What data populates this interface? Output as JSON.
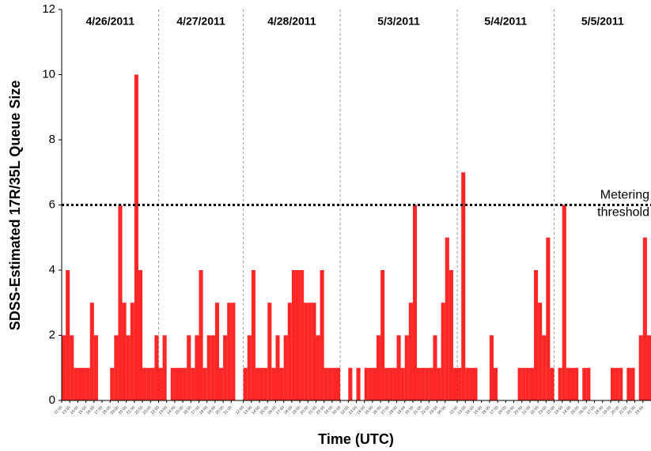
{
  "chart_data": {
    "type": "step",
    "y_label": "SDSS-Estimated 17R/35L Queue Size",
    "x_label": "Time (UTC)",
    "xlim": [
      0,
      73
    ],
    "ylim": [
      0,
      12
    ],
    "yticks": [
      0,
      2,
      4,
      6,
      8,
      10,
      12
    ],
    "grid": false,
    "color": "#ff0000",
    "days": [
      {
        "label": "4/26/2011",
        "start": 0,
        "end": 12
      },
      {
        "label": "4/27/2011",
        "start": 12,
        "end": 22.5
      },
      {
        "label": "4/28/2011",
        "start": 22.5,
        "end": 34.5
      },
      {
        "label": "5/3/2011",
        "start": 34.5,
        "end": 49
      },
      {
        "label": "5/4/2011",
        "start": 49,
        "end": 61
      },
      {
        "label": "5/5/2011",
        "start": 61,
        "end": 73
      }
    ],
    "threshold": {
      "value": 6,
      "label": [
        "Metering",
        "threshold"
      ]
    },
    "xticks": [
      {
        "value": 0,
        "label": "12:00"
      },
      {
        "value": 1,
        "label": "13:00"
      },
      {
        "value": 2,
        "label": "14:00"
      },
      {
        "value": 3,
        "label": "15:00"
      },
      {
        "value": 4,
        "label": "16:00"
      },
      {
        "value": 5,
        "label": "17:00"
      },
      {
        "value": 6,
        "label": "18:00"
      },
      {
        "value": 7,
        "label": "19:00"
      },
      {
        "value": 8,
        "label": "20:00"
      },
      {
        "value": 9,
        "label": "21:00"
      },
      {
        "value": 10,
        "label": "22:00"
      },
      {
        "value": 11,
        "label": "23:00"
      },
      {
        "value": 12,
        "label": "12:00"
      },
      {
        "value": 13,
        "label": "13:00"
      },
      {
        "value": 14,
        "label": "14:00"
      },
      {
        "value": 15,
        "label": "15:00"
      },
      {
        "value": 16,
        "label": "16:00"
      },
      {
        "value": 17,
        "label": "17:00"
      },
      {
        "value": 18,
        "label": "18:00"
      },
      {
        "value": 19,
        "label": "19:00"
      },
      {
        "value": 20,
        "label": "20:00"
      },
      {
        "value": 21,
        "label": "21:00"
      },
      {
        "value": 22.5,
        "label": "12:00"
      },
      {
        "value": 23.5,
        "label": "13:00"
      },
      {
        "value": 24.5,
        "label": "14:00"
      },
      {
        "value": 25.5,
        "label": "15:00"
      },
      {
        "value": 26.5,
        "label": "16:00"
      },
      {
        "value": 27.5,
        "label": "17:00"
      },
      {
        "value": 28.5,
        "label": "18:00"
      },
      {
        "value": 29.5,
        "label": "19:00"
      },
      {
        "value": 30.5,
        "label": "20:00"
      },
      {
        "value": 31.5,
        "label": "21:00"
      },
      {
        "value": 32.5,
        "label": "22:00"
      },
      {
        "value": 33.5,
        "label": "23:00"
      },
      {
        "value": 34.5,
        "label": "00:00"
      },
      {
        "value": 35.5,
        "label": "12:00"
      },
      {
        "value": 36.5,
        "label": "13:00"
      },
      {
        "value": 37.5,
        "label": "14:00"
      },
      {
        "value": 38.5,
        "label": "15:00"
      },
      {
        "value": 39.5,
        "label": "16:00"
      },
      {
        "value": 40.5,
        "label": "17:00"
      },
      {
        "value": 41.5,
        "label": "18:00"
      },
      {
        "value": 42.5,
        "label": "19:00"
      },
      {
        "value": 43.5,
        "label": "20:00"
      },
      {
        "value": 44.5,
        "label": "21:00"
      },
      {
        "value": 45.5,
        "label": "22:00"
      },
      {
        "value": 46.5,
        "label": "23:00"
      },
      {
        "value": 47.5,
        "label": "00:00"
      },
      {
        "value": 49,
        "label": "12:00"
      },
      {
        "value": 50,
        "label": "13:00"
      },
      {
        "value": 51,
        "label": "14:00"
      },
      {
        "value": 52,
        "label": "15:00"
      },
      {
        "value": 53,
        "label": "16:00"
      },
      {
        "value": 54,
        "label": "17:00"
      },
      {
        "value": 55,
        "label": "18:00"
      },
      {
        "value": 56,
        "label": "19:00"
      },
      {
        "value": 57,
        "label": "20:00"
      },
      {
        "value": 58,
        "label": "21:00"
      },
      {
        "value": 59,
        "label": "22:00"
      },
      {
        "value": 60,
        "label": "23:00"
      },
      {
        "value": 61,
        "label": "12:00"
      },
      {
        "value": 62,
        "label": "13:00"
      },
      {
        "value": 63,
        "label": "14:00"
      },
      {
        "value": 64,
        "label": "15:00"
      },
      {
        "value": 65,
        "label": "16:00"
      },
      {
        "value": 66,
        "label": "17:00"
      },
      {
        "value": 67,
        "label": "18:00"
      },
      {
        "value": 68,
        "label": "19:00"
      },
      {
        "value": 69,
        "label": "20:00"
      },
      {
        "value": 70,
        "label": "21:00"
      },
      {
        "value": 71,
        "label": "22:00"
      },
      {
        "value": 72,
        "label": "23:00"
      }
    ],
    "x": [
      0,
      0.5,
      1,
      1.5,
      2,
      2.5,
      3,
      3.5,
      4,
      4.5,
      5,
      5.5,
      6,
      6.5,
      7,
      7.5,
      8,
      8.5,
      9,
      9.5,
      10,
      10.5,
      11,
      11.5,
      12,
      12.5,
      13,
      13.5,
      14,
      14.5,
      15,
      15.5,
      16,
      16.5,
      17,
      17.5,
      18,
      18.5,
      19,
      19.5,
      20,
      20.5,
      21,
      21.5,
      22,
      22.5,
      23,
      23.5,
      24,
      24.5,
      25,
      25.5,
      26,
      26.5,
      27,
      27.5,
      28,
      28.5,
      29,
      29.5,
      30,
      30.5,
      31,
      31.5,
      32,
      32.5,
      33,
      33.5,
      34,
      34.5,
      35,
      35.5,
      36,
      36.5,
      37,
      37.5,
      38,
      38.5,
      39,
      39.5,
      40,
      40.5,
      41,
      41.5,
      42,
      42.5,
      43,
      43.5,
      44,
      44.5,
      45,
      45.5,
      46,
      46.5,
      47,
      47.5,
      48,
      48.5,
      49,
      49.5,
      50,
      50.5,
      51,
      51.5,
      52,
      52.5,
      53,
      53.5,
      54,
      54.5,
      55,
      55.5,
      56,
      56.5,
      57,
      57.5,
      58,
      58.5,
      59,
      59.5,
      60,
      60.5,
      61,
      61.5,
      62,
      62.5,
      63,
      63.5,
      64,
      64.5,
      65,
      65.5,
      66,
      66.5,
      67,
      67.5,
      68,
      68.5,
      69,
      69.5,
      70,
      70.5,
      71,
      71.5,
      72,
      72.5
    ],
    "values": [
      2,
      4,
      2,
      1,
      1,
      1,
      1,
      3,
      2,
      0,
      0,
      0,
      1,
      2,
      6,
      3,
      2,
      3,
      10,
      4,
      1,
      1,
      1,
      2,
      1,
      2,
      0,
      1,
      1,
      1,
      1,
      2,
      1,
      2,
      4,
      1,
      2,
      2,
      3,
      1,
      2,
      3,
      3,
      0,
      0,
      1,
      2,
      4,
      1,
      1,
      1,
      3,
      1,
      2,
      1,
      2,
      3,
      4,
      4,
      4,
      3,
      3,
      3,
      2,
      4,
      1,
      1,
      1,
      1,
      0,
      0,
      1,
      0,
      1,
      0,
      1,
      1,
      1,
      2,
      4,
      1,
      1,
      1,
      2,
      1,
      2,
      3,
      6,
      1,
      1,
      1,
      1,
      2,
      1,
      3,
      5,
      4,
      1,
      1,
      7,
      1,
      1,
      1,
      0,
      0,
      0,
      2,
      1,
      0,
      0,
      0,
      0,
      0,
      1,
      1,
      1,
      1,
      4,
      3,
      2,
      5,
      1,
      0,
      1,
      6,
      1,
      1,
      1,
      0,
      1,
      1,
      0,
      0,
      0,
      0,
      0,
      1,
      1,
      1,
      0,
      1,
      1,
      0,
      2,
      5,
      2
    ]
  }
}
